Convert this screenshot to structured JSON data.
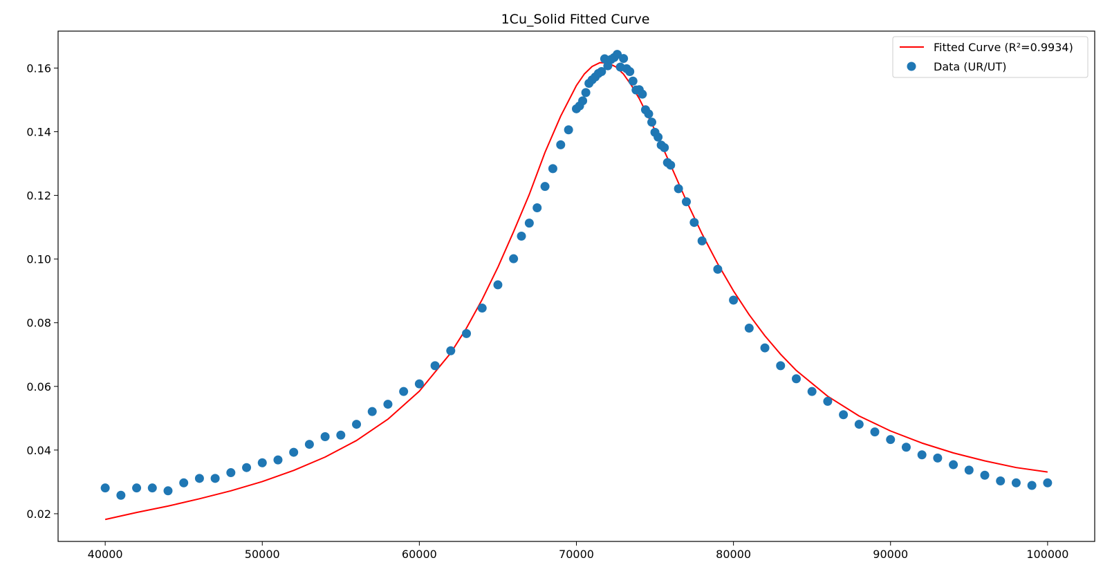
{
  "chart_data": {
    "type": "scatter",
    "title": "1Cu_Solid Fitted Curve",
    "xlabel": "",
    "ylabel": "",
    "xlim": [
      37000,
      103000
    ],
    "ylim": [
      0.0113,
      0.1716
    ],
    "x_ticks": [
      40000,
      50000,
      60000,
      70000,
      80000,
      90000,
      100000
    ],
    "x_tick_labels": [
      "40000",
      "50000",
      "60000",
      "70000",
      "80000",
      "90000",
      "100000"
    ],
    "y_ticks": [
      0.02,
      0.04,
      0.06,
      0.08,
      0.1,
      0.12,
      0.14,
      0.16
    ],
    "y_tick_labels": [
      "0.02",
      "0.04",
      "0.06",
      "0.08",
      "0.10",
      "0.12",
      "0.14",
      "0.16"
    ],
    "grid": false,
    "legend_position": "top-right",
    "series": [
      {
        "name": "Fitted Curve (R²=0.9934)",
        "kind": "line",
        "color": "#ff0000",
        "x": [
          40000,
          42000,
          44000,
          46000,
          48000,
          50000,
          52000,
          54000,
          56000,
          58000,
          60000,
          62000,
          63000,
          64000,
          65000,
          66000,
          67000,
          68000,
          69000,
          70000,
          70500,
          71000,
          71500,
          72000,
          72500,
          73000,
          73500,
          74000,
          75000,
          76000,
          77000,
          78000,
          79000,
          80000,
          81000,
          82000,
          83000,
          84000,
          86000,
          88000,
          90000,
          92000,
          94000,
          96000,
          98000,
          100000
        ],
        "y": [
          0.0182,
          0.0204,
          0.0224,
          0.0247,
          0.0272,
          0.0301,
          0.0336,
          0.0378,
          0.043,
          0.0497,
          0.0585,
          0.0705,
          0.0783,
          0.0873,
          0.0974,
          0.1086,
          0.1203,
          0.1335,
          0.1449,
          0.1545,
          0.1581,
          0.1605,
          0.1617,
          0.1616,
          0.1604,
          0.1581,
          0.1546,
          0.1504,
          0.1405,
          0.1295,
          0.1183,
          0.1079,
          0.0985,
          0.09,
          0.0825,
          0.0759,
          0.0701,
          0.065,
          0.0569,
          0.0507,
          0.046,
          0.0422,
          0.0391,
          0.0366,
          0.0345,
          0.0331
        ]
      },
      {
        "name": "Data (UR/UT)",
        "kind": "scatter",
        "color": "#1f77b4",
        "x": [
          40000,
          41000,
          42000,
          43000,
          44000,
          45000,
          46000,
          47000,
          48000,
          49000,
          50000,
          51000,
          52000,
          53000,
          54000,
          55000,
          56000,
          57000,
          58000,
          59000,
          60000,
          61000,
          62000,
          63000,
          64000,
          65000,
          66000,
          66500,
          67000,
          67500,
          68000,
          68500,
          69000,
          69500,
          70000,
          70200,
          70400,
          70600,
          70800,
          71000,
          71200,
          71400,
          71600,
          71800,
          72000,
          72200,
          72400,
          72600,
          72800,
          73000,
          73200,
          73400,
          73600,
          73800,
          74000,
          74200,
          74400,
          74600,
          74800,
          75000,
          75200,
          75400,
          75600,
          75800,
          76000,
          76500,
          77000,
          77500,
          78000,
          79000,
          80000,
          81000,
          82000,
          83000,
          84000,
          85000,
          86000,
          87000,
          88000,
          89000,
          90000,
          91000,
          92000,
          93000,
          94000,
          95000,
          96000,
          97000,
          98000,
          99000,
          100000
        ],
        "y": [
          0.0281,
          0.0258,
          0.0281,
          0.0281,
          0.0272,
          0.0297,
          0.0311,
          0.0311,
          0.0329,
          0.0345,
          0.036,
          0.0369,
          0.0393,
          0.0418,
          0.0442,
          0.0447,
          0.0481,
          0.0521,
          0.0544,
          0.0584,
          0.0608,
          0.0665,
          0.0712,
          0.0766,
          0.0846,
          0.0919,
          0.1001,
          0.1072,
          0.1113,
          0.1161,
          0.1228,
          0.1284,
          0.1359,
          0.1406,
          0.1472,
          0.1481,
          0.1497,
          0.1523,
          0.1552,
          0.1563,
          0.1572,
          0.1583,
          0.1589,
          0.1629,
          0.1607,
          0.1627,
          0.1633,
          0.1643,
          0.1603,
          0.163,
          0.1598,
          0.1589,
          0.1559,
          0.1531,
          0.1532,
          0.1518,
          0.1469,
          0.1456,
          0.143,
          0.1398,
          0.1383,
          0.1358,
          0.135,
          0.1303,
          0.1295,
          0.1221,
          0.118,
          0.1115,
          0.1057,
          0.0968,
          0.0871,
          0.0783,
          0.0721,
          0.0665,
          0.0624,
          0.0584,
          0.0553,
          0.0511,
          0.0481,
          0.0457,
          0.0433,
          0.0409,
          0.0385,
          0.0375,
          0.0354,
          0.0337,
          0.0321,
          0.0303,
          0.0297,
          0.0289,
          0.0297
        ]
      }
    ]
  }
}
